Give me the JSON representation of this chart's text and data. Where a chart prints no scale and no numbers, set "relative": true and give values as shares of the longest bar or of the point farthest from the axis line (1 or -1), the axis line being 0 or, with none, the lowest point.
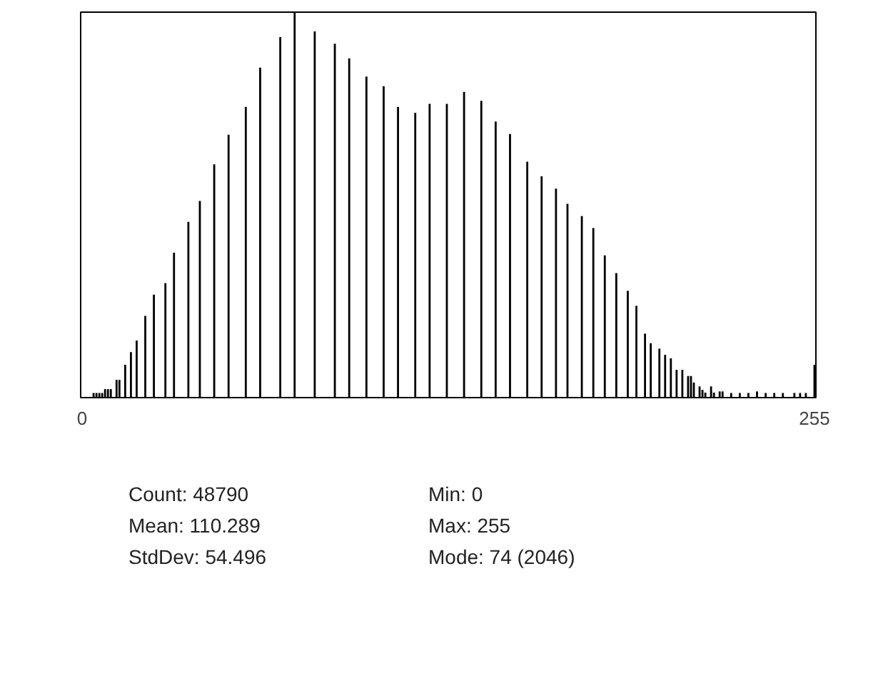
{
  "chart_data": {
    "type": "bar",
    "relative": true,
    "color": "#000000",
    "grid": false,
    "xlim": [
      -0.5,
      255.5
    ],
    "xticks": [
      0,
      255
    ],
    "x": [
      0,
      1,
      2,
      3,
      4,
      5,
      6,
      7,
      8,
      9,
      10,
      11,
      12,
      13,
      14,
      15,
      16,
      17,
      18,
      19,
      20,
      21,
      22,
      23,
      24,
      25,
      26,
      27,
      28,
      29,
      30,
      31,
      32,
      33,
      34,
      35,
      36,
      37,
      38,
      39,
      40,
      41,
      42,
      43,
      44,
      45,
      46,
      47,
      48,
      49,
      50,
      51,
      52,
      53,
      54,
      55,
      56,
      57,
      58,
      59,
      60,
      61,
      62,
      63,
      64,
      65,
      66,
      67,
      68,
      69,
      70,
      71,
      72,
      73,
      74,
      75,
      76,
      77,
      78,
      79,
      80,
      81,
      82,
      83,
      84,
      85,
      86,
      87,
      88,
      89,
      90,
      91,
      92,
      93,
      94,
      95,
      96,
      97,
      98,
      99,
      100,
      101,
      102,
      103,
      104,
      105,
      106,
      107,
      108,
      109,
      110,
      111,
      112,
      113,
      114,
      115,
      116,
      117,
      118,
      119,
      120,
      121,
      122,
      123,
      124,
      125,
      126,
      127,
      128,
      129,
      130,
      131,
      132,
      133,
      134,
      135,
      136,
      137,
      138,
      139,
      140,
      141,
      142,
      143,
      144,
      145,
      146,
      147,
      148,
      149,
      150,
      151,
      152,
      153,
      154,
      155,
      156,
      157,
      158,
      159,
      160,
      161,
      162,
      163,
      164,
      165,
      166,
      167,
      168,
      169,
      170,
      171,
      172,
      173,
      174,
      175,
      176,
      177,
      178,
      179,
      180,
      181,
      182,
      183,
      184,
      185,
      186,
      187,
      188,
      189,
      190,
      191,
      192,
      193,
      194,
      195,
      196,
      197,
      198,
      199,
      200,
      201,
      202,
      203,
      204,
      205,
      206,
      207,
      208,
      209,
      210,
      211,
      212,
      213,
      214,
      215,
      216,
      217,
      218,
      219,
      220,
      221,
      222,
      223,
      224,
      225,
      226,
      227,
      228,
      229,
      230,
      231,
      232,
      233,
      234,
      235,
      236,
      237,
      238,
      239,
      240,
      241,
      242,
      243,
      244,
      245,
      246,
      247,
      248,
      249,
      250,
      251,
      252,
      253,
      254,
      255
    ],
    "values": [
      0,
      0,
      0,
      0,
      0.012,
      0.012,
      0.012,
      0.012,
      0.022,
      0.022,
      0.022,
      0,
      0.046,
      0.046,
      0,
      0.085,
      0,
      0.118,
      0,
      0.148,
      0,
      0,
      0.212,
      0,
      0,
      0.267,
      0,
      0,
      0,
      0.297,
      0,
      0,
      0.376,
      0,
      0,
      0,
      0,
      0.456,
      0,
      0,
      0,
      0.51,
      0,
      0,
      0,
      0,
      0.605,
      0,
      0,
      0,
      0,
      0.682,
      0,
      0,
      0,
      0,
      0,
      0.754,
      0,
      0,
      0,
      0,
      0.856,
      0,
      0,
      0,
      0,
      0,
      0,
      0.935,
      0,
      0,
      0,
      0,
      1,
      0,
      0,
      0,
      0,
      0,
      0,
      0.95,
      0,
      0,
      0,
      0,
      0,
      0,
      0.918,
      0,
      0,
      0,
      0,
      0.88,
      0,
      0,
      0,
      0,
      0,
      0.833,
      0,
      0,
      0,
      0,
      0,
      0.808,
      0,
      0,
      0,
      0,
      0.754,
      0,
      0,
      0,
      0,
      0,
      0.739,
      0,
      0,
      0,
      0,
      0.762,
      0,
      0,
      0,
      0,
      0,
      0.762,
      0,
      0,
      0,
      0,
      0,
      0.793,
      0,
      0,
      0,
      0,
      0,
      0.77,
      0,
      0,
      0,
      0,
      0.716,
      0,
      0,
      0,
      0,
      0.684,
      0,
      0,
      0,
      0,
      0,
      0.612,
      0,
      0,
      0,
      0,
      0.574,
      0,
      0,
      0,
      0,
      0.542,
      0,
      0,
      0,
      0.503,
      0,
      0,
      0,
      0,
      0.471,
      0,
      0,
      0,
      0.44,
      0,
      0,
      0,
      0.369,
      0,
      0,
      0,
      0.323,
      0,
      0,
      0,
      0.277,
      0,
      0,
      0.238,
      0,
      0,
      0.166,
      0,
      0.141,
      0,
      0,
      0.127,
      0,
      0.111,
      0,
      0.102,
      0,
      0.072,
      0,
      0.072,
      0,
      0.056,
      0.056,
      0.039,
      0,
      0.029,
      0.02,
      0.013,
      0,
      0.029,
      0.013,
      0,
      0.016,
      0.016,
      0,
      0,
      0.012,
      0,
      0,
      0.012,
      0,
      0,
      0.012,
      0,
      0,
      0.016,
      0,
      0,
      0.012,
      0,
      0,
      0.012,
      0,
      0,
      0.012,
      0,
      0,
      0,
      0.012,
      0,
      0.012,
      0,
      0.012,
      0,
      0,
      0.085
    ],
    "annotations": [
      "Count: 48790",
      "Mean: 110.289",
      "StdDev: 54.496",
      "Min: 0",
      "Max: 255",
      "Mode: 74 (2046)"
    ]
  }
}
